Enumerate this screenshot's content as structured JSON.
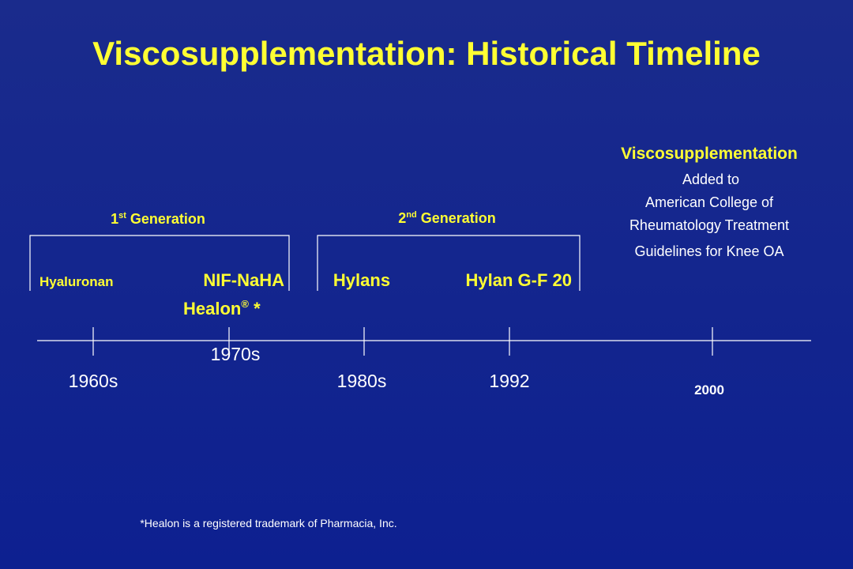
{
  "title": "Viscosupplementation: Historical Timeline",
  "generations": [
    {
      "number": "1",
      "suffix": "st",
      "label": " Generation"
    },
    {
      "number": "2",
      "suffix": "nd",
      "label": " Generation"
    }
  ],
  "products": {
    "hyaluronan": "Hyaluronan",
    "nif_naha": "NIF-NaHA",
    "healon": "Healon",
    "registered": "®",
    "asterisk": " *",
    "hylans": "Hylans",
    "hylan_gf20": "Hylan G-F 20"
  },
  "milestone": {
    "heading": "Viscosupplementation",
    "lines": [
      "Added to",
      "American College of",
      "Rheumatology Treatment",
      "Guidelines for Knee OA"
    ]
  },
  "timeline": [
    "1960s",
    "1970s",
    "1980s",
    "1992",
    "2000"
  ],
  "footnote": "*Healon is a registered trademark of Pharmacia, Inc."
}
